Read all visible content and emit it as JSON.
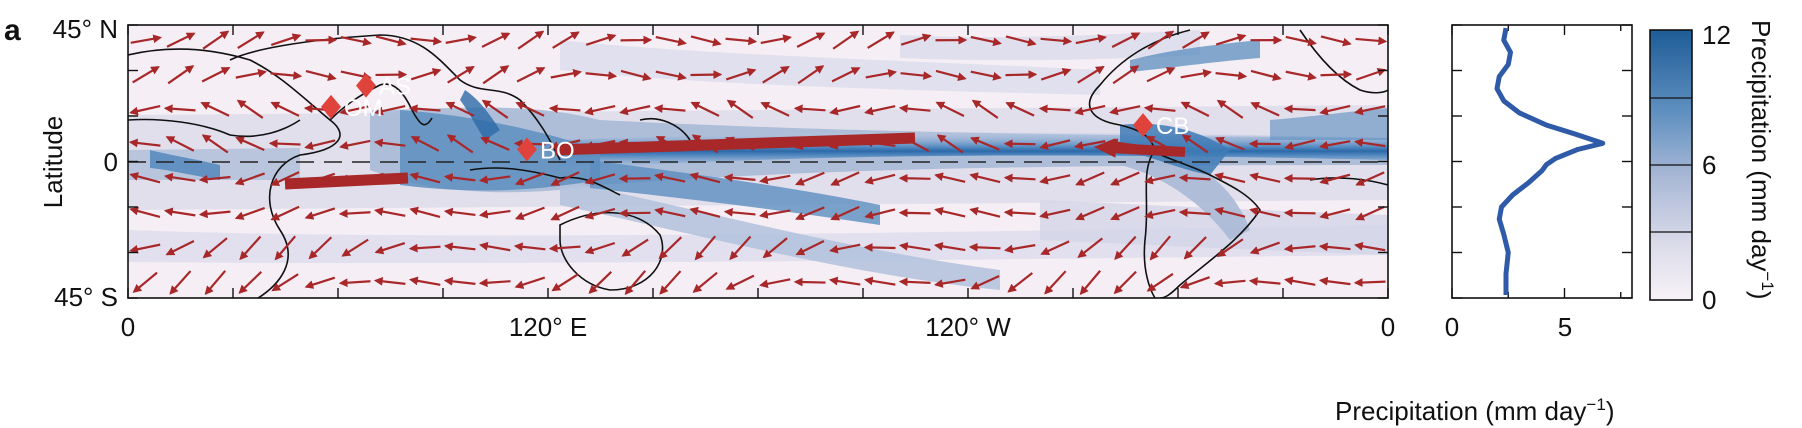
{
  "panel_label": "a",
  "map": {
    "x_ticks": [
      "0",
      "120° E",
      "120° W",
      "0"
    ],
    "y_ticks": [
      "45° N",
      "0",
      "45° S"
    ],
    "ylabel": "Latitude",
    "sites": [
      {
        "code": "OM",
        "lon": 58,
        "lat": 18
      },
      {
        "code": "AS",
        "lon": 68,
        "lat": 25
      },
      {
        "code": "BO",
        "lon": 114,
        "lat": 4
      },
      {
        "code": "CB",
        "lon": 290,
        "lat": 12
      }
    ],
    "colors": {
      "arrow": "#a8282a",
      "site": "#e0433b",
      "coast": "#111111"
    }
  },
  "profile": {
    "x_ticks": [
      "0",
      "5"
    ],
    "xlabel": "Precipitation (mm day",
    "xlabel_exp": "−1",
    "xlabel_close": ")",
    "line_color": "#2f5aa8"
  },
  "colorbar": {
    "ticks": [
      "0",
      "6",
      "12"
    ],
    "label": "Precipitation (mm day",
    "label_exp": "−1",
    "label_close": ")",
    "low_color": "#f7f2f7",
    "high_color": "#1e5c96"
  },
  "chart_data": {
    "type": "line",
    "title": "",
    "xlabel": "Precipitation (mm day−1)",
    "ylabel": "Latitude",
    "xlim": [
      0,
      8
    ],
    "ylim": [
      -45,
      45
    ],
    "series": [
      {
        "x": [
          2.4,
          2.3,
          2.6,
          2.5,
          2.1,
          2.0,
          2.3,
          3.0,
          4.2,
          5.5,
          6.7,
          5.6,
          4.6,
          4.2,
          4.0,
          3.4,
          2.7,
          2.2,
          2.1,
          2.3,
          2.5,
          2.4,
          2.4
        ],
        "y": [
          44,
          40,
          36,
          32,
          28,
          24,
          20,
          16,
          12,
          9,
          6,
          4,
          1,
          -1,
          -3,
          -7,
          -11,
          -15,
          -19,
          -24,
          -30,
          -37,
          -44
        ]
      }
    ]
  }
}
